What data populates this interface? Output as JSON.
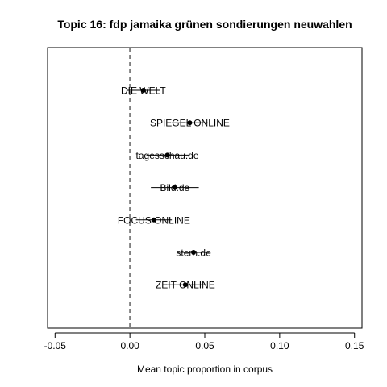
{
  "chart_data": {
    "type": "scatter",
    "title": "Topic 16: fdp jamaika grünen sondierungen neuwahlen",
    "xlabel": "Mean topic proportion in corpus",
    "ylabel": "",
    "xlim": [
      -0.055,
      0.155
    ],
    "x_ticks": [
      -0.05,
      0.0,
      0.05,
      0.1,
      0.15
    ],
    "x_tick_labels": [
      "-0.05",
      "0.00",
      "0.05",
      "0.10",
      "0.15"
    ],
    "reference_line": 0,
    "grid": false,
    "legend": "none",
    "point_color": "#000000",
    "reference_line_color": "#808080",
    "series": [
      {
        "label": "DIE WELT",
        "mean": 0.009,
        "lower": -0.002,
        "upper": 0.02
      },
      {
        "label": "SPIEGEL ONLINE",
        "mean": 0.04,
        "lower": 0.028,
        "upper": 0.052
      },
      {
        "label": "tagesschau.de",
        "mean": 0.025,
        "lower": 0.011,
        "upper": 0.04
      },
      {
        "label": "Bild.de",
        "mean": 0.03,
        "lower": 0.014,
        "upper": 0.046
      },
      {
        "label": "FOCUS ONLINE",
        "mean": 0.016,
        "lower": 0.004,
        "upper": 0.028
      },
      {
        "label": "stern.de",
        "mean": 0.0425,
        "lower": 0.032,
        "upper": 0.053
      },
      {
        "label": "ZEIT ONLINE",
        "mean": 0.037,
        "lower": 0.024,
        "upper": 0.05
      }
    ]
  }
}
